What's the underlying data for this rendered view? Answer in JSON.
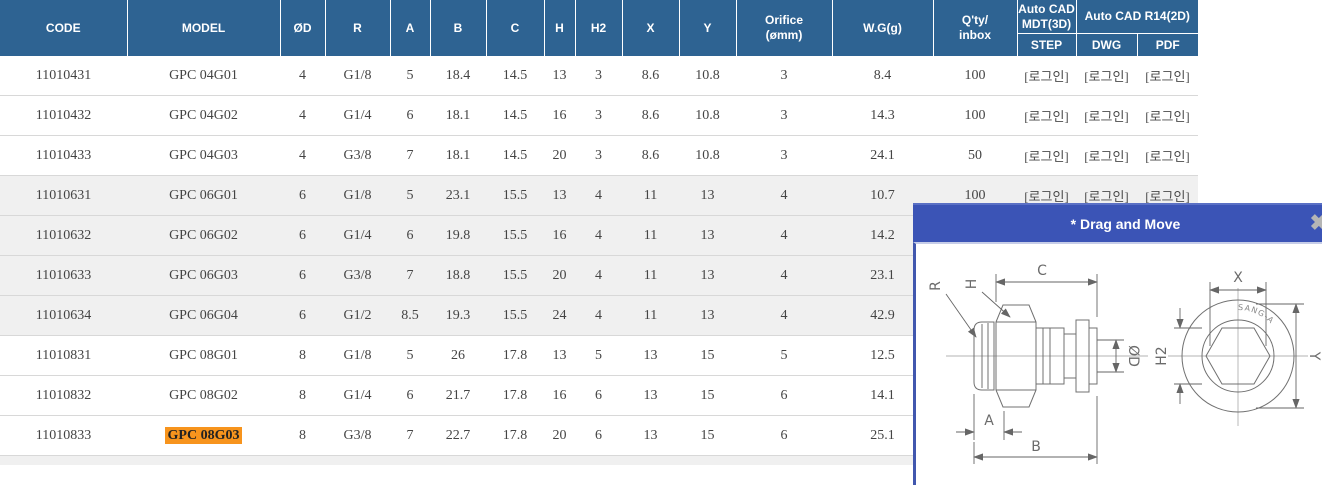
{
  "colors": {
    "header_bg": "#2e6392",
    "panel_title_bg": "#3b54b6",
    "highlight_orange": "#f7941d",
    "row_shade": "#f0f0f0"
  },
  "table": {
    "header": {
      "code": "CODE",
      "model": "MODEL",
      "od": "ØD",
      "r": "R",
      "a": "A",
      "b": "B",
      "c": "C",
      "h": "H",
      "h2": "H2",
      "x": "X",
      "y": "Y",
      "orifice": "Orifice\n(ømm)",
      "wg": "W.G(g)",
      "qty": "Q'ty/\ninbox",
      "cad_3d": "Auto CAD\nMDT(3D)",
      "cad_2d": "Auto CAD R14(2D)",
      "step": "STEP",
      "dwg": "DWG",
      "pdf": "PDF"
    },
    "login_label": "[로그인]",
    "rows": [
      {
        "code": "11010431",
        "model": "GPC 04G01",
        "od": "4",
        "r": "G1/8",
        "a": "5",
        "b": "18.4",
        "c": "14.5",
        "h": "13",
        "h2": "3",
        "x": "8.6",
        "y": "10.8",
        "orifice": "3",
        "wg": "8.4",
        "qty": "100",
        "links": true,
        "shaded": false,
        "highlight": false
      },
      {
        "code": "11010432",
        "model": "GPC 04G02",
        "od": "4",
        "r": "G1/4",
        "a": "6",
        "b": "18.1",
        "c": "14.5",
        "h": "16",
        "h2": "3",
        "x": "8.6",
        "y": "10.8",
        "orifice": "3",
        "wg": "14.3",
        "qty": "100",
        "links": true,
        "shaded": false,
        "highlight": false
      },
      {
        "code": "11010433",
        "model": "GPC 04G03",
        "od": "4",
        "r": "G3/8",
        "a": "7",
        "b": "18.1",
        "c": "14.5",
        "h": "20",
        "h2": "3",
        "x": "8.6",
        "y": "10.8",
        "orifice": "3",
        "wg": "24.1",
        "qty": "50",
        "links": true,
        "shaded": false,
        "highlight": false
      },
      {
        "code": "11010631",
        "model": "GPC 06G01",
        "od": "6",
        "r": "G1/8",
        "a": "5",
        "b": "23.1",
        "c": "15.5",
        "h": "13",
        "h2": "4",
        "x": "11",
        "y": "13",
        "orifice": "4",
        "wg": "10.7",
        "qty": "100",
        "links": true,
        "shaded": true,
        "highlight": false
      },
      {
        "code": "11010632",
        "model": "GPC 06G02",
        "od": "6",
        "r": "G1/4",
        "a": "6",
        "b": "19.8",
        "c": "15.5",
        "h": "16",
        "h2": "4",
        "x": "11",
        "y": "13",
        "orifice": "4",
        "wg": "14.2",
        "qty": "",
        "links": false,
        "shaded": true,
        "highlight": false
      },
      {
        "code": "11010633",
        "model": "GPC 06G03",
        "od": "6",
        "r": "G3/8",
        "a": "7",
        "b": "18.8",
        "c": "15.5",
        "h": "20",
        "h2": "4",
        "x": "11",
        "y": "13",
        "orifice": "4",
        "wg": "23.1",
        "qty": "",
        "links": false,
        "shaded": true,
        "highlight": false
      },
      {
        "code": "11010634",
        "model": "GPC 06G04",
        "od": "6",
        "r": "G1/2",
        "a": "8.5",
        "b": "19.3",
        "c": "15.5",
        "h": "24",
        "h2": "4",
        "x": "11",
        "y": "13",
        "orifice": "4",
        "wg": "42.9",
        "qty": "",
        "links": false,
        "shaded": true,
        "highlight": false
      },
      {
        "code": "11010831",
        "model": "GPC 08G01",
        "od": "8",
        "r": "G1/8",
        "a": "5",
        "b": "26",
        "c": "17.8",
        "h": "13",
        "h2": "5",
        "x": "13",
        "y": "15",
        "orifice": "5",
        "wg": "12.5",
        "qty": "",
        "links": false,
        "shaded": false,
        "highlight": false
      },
      {
        "code": "11010832",
        "model": "GPC 08G02",
        "od": "8",
        "r": "G1/4",
        "a": "6",
        "b": "21.7",
        "c": "17.8",
        "h": "16",
        "h2": "6",
        "x": "13",
        "y": "15",
        "orifice": "6",
        "wg": "14.1",
        "qty": "",
        "links": false,
        "shaded": false,
        "highlight": false
      },
      {
        "code": "11010833",
        "model": "GPC 08G03",
        "od": "8",
        "r": "G3/8",
        "a": "7",
        "b": "22.7",
        "c": "17.8",
        "h": "20",
        "h2": "6",
        "x": "13",
        "y": "15",
        "orifice": "6",
        "wg": "25.1",
        "qty": "",
        "links": false,
        "shaded": false,
        "highlight": true
      },
      {
        "code": "",
        "model": "",
        "od": "",
        "r": "",
        "a": "",
        "b": "",
        "c": "",
        "h": "",
        "h2": "",
        "x": "",
        "y": "",
        "orifice": "",
        "wg": "",
        "qty": "",
        "links": false,
        "shaded": true,
        "highlight": false,
        "stub": true
      }
    ]
  },
  "panel": {
    "title": "* Drag and Move",
    "close_icon": "✖",
    "diagram": {
      "labels": {
        "c": "C",
        "r": "R",
        "h": "H",
        "od": "ØD",
        "a": "A",
        "b": "B",
        "x": "X",
        "h2": "H2",
        "y": "Y"
      },
      "brand": "SANG-A"
    }
  }
}
